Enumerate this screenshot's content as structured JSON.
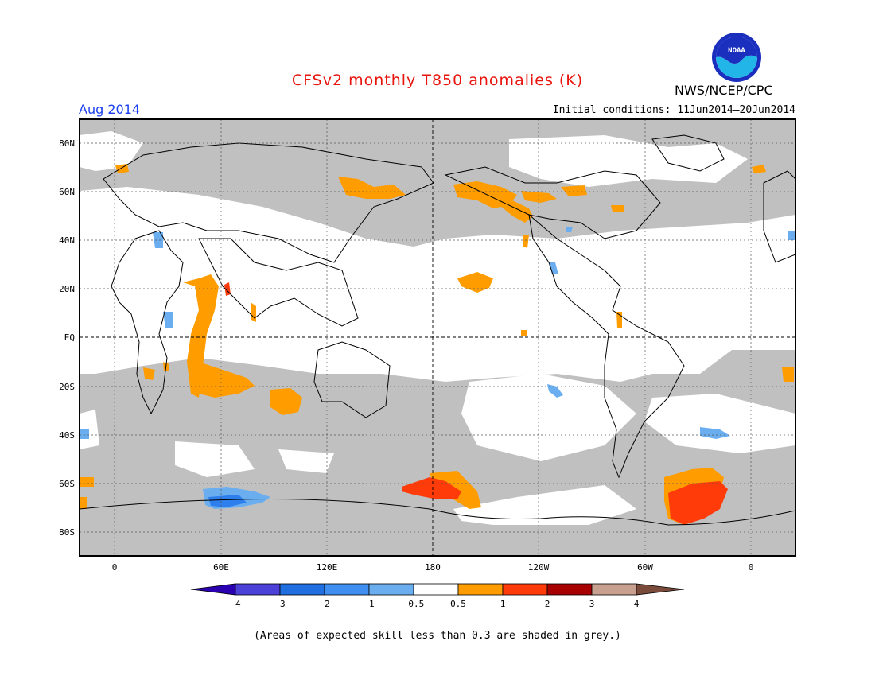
{
  "header": {
    "title": "CFSv2 monthly T850 anomalies (K)",
    "period": "Aug 2014",
    "initial_conditions": "Initial conditions: 11Jun2014–20Jun2014",
    "org": "NWS/NCEP/CPC",
    "logo_text": "NOAA"
  },
  "colors": {
    "title": "#e8150e",
    "period": "#1a3ff0",
    "land_grey": "#c0c0c0",
    "orange": "#ff9d00",
    "red": "#ff3b0a",
    "blue_light": "#6aaef0",
    "blue_med": "#2e7fee"
  },
  "map": {
    "lat_labels": [
      "80N",
      "60N",
      "40N",
      "20N",
      "EQ",
      "20S",
      "40S",
      "60S",
      "80S"
    ],
    "lon_labels": [
      "0",
      "60E",
      "120E",
      "180",
      "120W",
      "60W",
      "0"
    ]
  },
  "legend": {
    "labels": [
      "−4",
      "−3",
      "−2",
      "−1",
      "−0.5",
      "0.5",
      "1",
      "2",
      "3",
      "4"
    ],
    "colors": [
      "#2a00b0",
      "#4b40d8",
      "#1f6fe0",
      "#3f8ff0",
      "#6aaef0",
      "#ffffff",
      "#ff9d00",
      "#ff3b0a",
      "#a80000",
      "#c8a090",
      "#7a4a3a"
    ]
  },
  "footer": {
    "note": "(Areas of expected skill less than 0.3 are shaded in grey.)"
  }
}
